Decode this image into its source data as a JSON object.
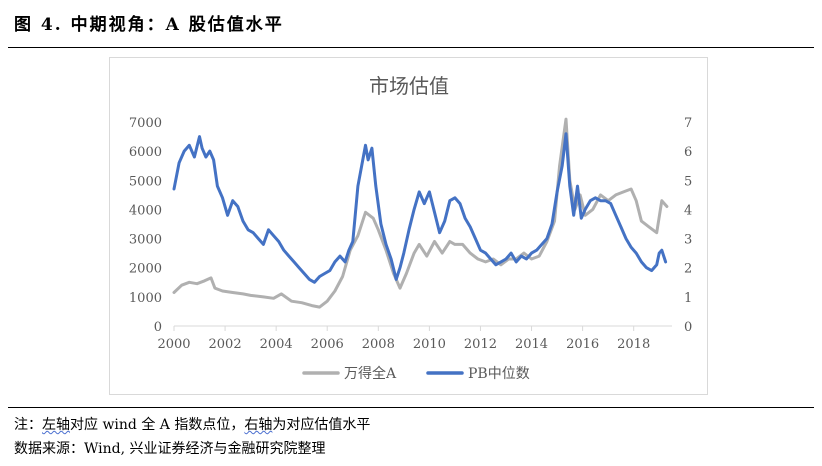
{
  "header": {
    "figure_title": "图 4. 中期视角：A 股估值水平"
  },
  "footer": {
    "note_prefix": "注：",
    "note_left_axis_word": "左轴",
    "note_left_axis_rest": "对应 wind 全 A 指数点位，",
    "note_right_axis_word": "右轴",
    "note_right_axis_rest": "为对应估值水平",
    "source": "数据来源：Wind, 兴业证券经济与金融研究院整理"
  },
  "colors": {
    "series_gray": "#b0b0b0",
    "series_blue": "#4472c4",
    "axis_text": "#595959"
  },
  "chart_data": {
    "type": "line",
    "title": "市场估值",
    "x_ticks": [
      "2000",
      "2002",
      "2004",
      "2006",
      "2008",
      "2010",
      "2012",
      "2014",
      "2016",
      "2018"
    ],
    "xlim": [
      2000,
      2019.5
    ],
    "y_left": {
      "ylim": [
        0,
        7000
      ],
      "ticks": [
        "0",
        "1000",
        "2000",
        "3000",
        "4000",
        "5000",
        "6000",
        "7000"
      ]
    },
    "y_right": {
      "ylim": [
        0,
        7
      ],
      "ticks": [
        "0",
        "1",
        "2",
        "3",
        "4",
        "5",
        "6",
        "7"
      ]
    },
    "grid": false,
    "legend_position": "bottom",
    "series": [
      {
        "name": "万得全A",
        "axis": "left",
        "color": "#b0b0b0",
        "x": [
          2000.0,
          2000.3,
          2000.6,
          2000.9,
          2001.2,
          2001.45,
          2001.6,
          2001.9,
          2002.3,
          2002.7,
          2003.0,
          2003.5,
          2003.9,
          2004.2,
          2004.6,
          2005.0,
          2005.4,
          2005.7,
          2006.0,
          2006.3,
          2006.6,
          2006.9,
          2007.2,
          2007.5,
          2007.8,
          2008.0,
          2008.3,
          2008.6,
          2008.85,
          2009.1,
          2009.4,
          2009.6,
          2009.9,
          2010.2,
          2010.5,
          2010.8,
          2011.0,
          2011.3,
          2011.6,
          2011.9,
          2012.2,
          2012.5,
          2012.8,
          2013.1,
          2013.4,
          2013.7,
          2014.0,
          2014.3,
          2014.6,
          2014.9,
          2015.1,
          2015.35,
          2015.5,
          2015.7,
          2015.9,
          2016.1,
          2016.4,
          2016.7,
          2017.0,
          2017.3,
          2017.6,
          2017.9,
          2018.1,
          2018.3,
          2018.6,
          2018.9,
          2019.1,
          2019.3
        ],
        "values": [
          1150,
          1400,
          1500,
          1450,
          1550,
          1650,
          1300,
          1200,
          1150,
          1100,
          1050,
          1000,
          950,
          1100,
          850,
          800,
          700,
          650,
          850,
          1200,
          1700,
          2600,
          3100,
          3900,
          3700,
          3300,
          2600,
          1800,
          1300,
          1800,
          2500,
          2800,
          2400,
          2900,
          2500,
          2900,
          2800,
          2800,
          2500,
          2300,
          2200,
          2300,
          2100,
          2300,
          2300,
          2500,
          2300,
          2400,
          2900,
          3600,
          5500,
          7100,
          5000,
          4000,
          4500,
          3800,
          4000,
          4500,
          4300,
          4500,
          4600,
          4700,
          4300,
          3600,
          3400,
          3200,
          4300,
          4100
        ]
      },
      {
        "name": "PB中位数",
        "axis": "right",
        "color": "#4472c4",
        "x": [
          2000.0,
          2000.2,
          2000.4,
          2000.6,
          2000.8,
          2001.0,
          2001.1,
          2001.25,
          2001.4,
          2001.55,
          2001.7,
          2001.9,
          2002.1,
          2002.3,
          2002.5,
          2002.7,
          2002.9,
          2003.1,
          2003.3,
          2003.5,
          2003.7,
          2003.9,
          2004.1,
          2004.3,
          2004.5,
          2004.7,
          2004.9,
          2005.1,
          2005.3,
          2005.5,
          2005.7,
          2005.9,
          2006.1,
          2006.3,
          2006.5,
          2006.7,
          2006.85,
          2007.0,
          2007.2,
          2007.35,
          2007.5,
          2007.6,
          2007.75,
          2007.9,
          2008.1,
          2008.3,
          2008.5,
          2008.7,
          2008.85,
          2009.0,
          2009.2,
          2009.4,
          2009.6,
          2009.8,
          2010.0,
          2010.2,
          2010.4,
          2010.6,
          2010.8,
          2011.0,
          2011.2,
          2011.4,
          2011.6,
          2011.8,
          2012.0,
          2012.2,
          2012.4,
          2012.6,
          2012.8,
          2013.0,
          2013.2,
          2013.4,
          2013.6,
          2013.8,
          2014.0,
          2014.2,
          2014.4,
          2014.6,
          2014.8,
          2015.0,
          2015.2,
          2015.35,
          2015.5,
          2015.65,
          2015.8,
          2015.95,
          2016.1,
          2016.3,
          2016.5,
          2016.7,
          2016.9,
          2017.1,
          2017.3,
          2017.5,
          2017.7,
          2017.9,
          2018.1,
          2018.3,
          2018.5,
          2018.7,
          2018.9,
          2019.0,
          2019.1,
          2019.25
        ],
        "values": [
          4.7,
          5.6,
          6.0,
          6.2,
          5.8,
          6.5,
          6.1,
          5.8,
          6.0,
          5.7,
          4.8,
          4.4,
          3.8,
          4.3,
          4.1,
          3.6,
          3.3,
          3.2,
          3.0,
          2.8,
          3.3,
          3.1,
          2.9,
          2.6,
          2.4,
          2.2,
          2.0,
          1.8,
          1.6,
          1.5,
          1.7,
          1.8,
          1.9,
          2.2,
          2.4,
          2.2,
          2.6,
          2.9,
          4.8,
          5.5,
          6.2,
          5.7,
          6.1,
          4.8,
          3.5,
          2.8,
          2.3,
          1.6,
          2.0,
          2.5,
          3.3,
          4.0,
          4.6,
          4.2,
          4.6,
          3.9,
          3.2,
          3.6,
          4.3,
          4.4,
          4.2,
          3.7,
          3.4,
          3.0,
          2.6,
          2.5,
          2.3,
          2.1,
          2.2,
          2.3,
          2.5,
          2.2,
          2.4,
          2.3,
          2.5,
          2.6,
          2.8,
          3.0,
          3.5,
          4.6,
          5.5,
          6.6,
          4.8,
          3.8,
          4.8,
          3.7,
          4.0,
          4.3,
          4.4,
          4.3,
          4.3,
          4.2,
          3.8,
          3.4,
          3.0,
          2.7,
          2.5,
          2.2,
          2.0,
          1.9,
          2.1,
          2.5,
          2.6,
          2.2
        ]
      }
    ]
  }
}
